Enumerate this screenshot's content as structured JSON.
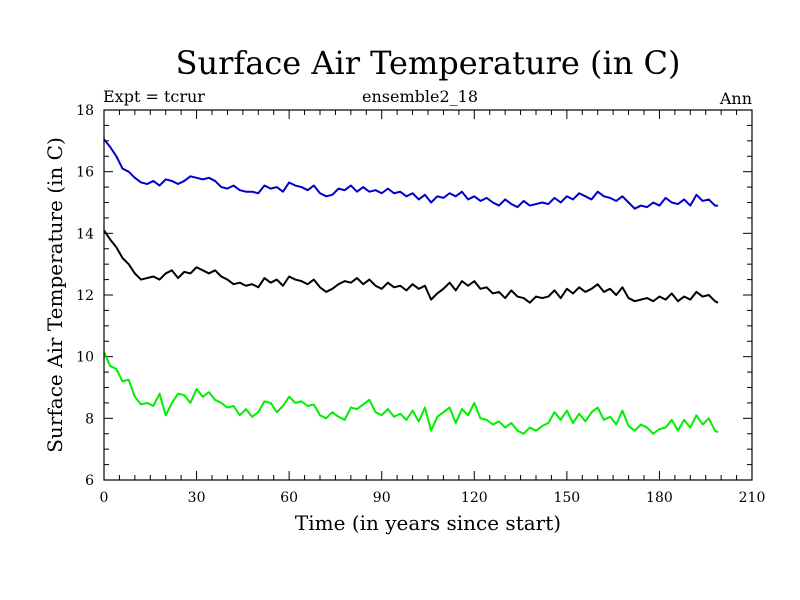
{
  "chart_data": {
    "type": "line",
    "title": "Surface Air Temperature (in C)",
    "subtitle_left": "Expt = tcrur",
    "subtitle_center": "ensemble2_18",
    "subtitle_right": "Ann",
    "xlabel": "Time (in years since start)",
    "ylabel": "Surface Air Temperature (in C)",
    "xlim": [
      0,
      210
    ],
    "ylim": [
      6,
      18
    ],
    "xticks": [
      0,
      30,
      60,
      90,
      120,
      150,
      180,
      210
    ],
    "yticks": [
      6,
      8,
      10,
      12,
      14,
      16,
      18
    ],
    "grid": false,
    "series": [
      {
        "color": "#0000cc",
        "x": [
          0,
          2,
          4,
          6,
          8,
          10,
          12,
          14,
          16,
          18,
          20,
          22,
          24,
          26,
          28,
          30,
          32,
          34,
          36,
          38,
          40,
          42,
          44,
          46,
          48,
          50,
          52,
          54,
          56,
          58,
          60,
          62,
          64,
          66,
          68,
          70,
          72,
          74,
          76,
          78,
          80,
          82,
          84,
          86,
          88,
          90,
          92,
          94,
          96,
          98,
          100,
          102,
          104,
          106,
          108,
          110,
          112,
          114,
          116,
          118,
          120,
          122,
          124,
          126,
          128,
          130,
          132,
          134,
          136,
          138,
          140,
          142,
          144,
          146,
          148,
          150,
          152,
          154,
          156,
          158,
          160,
          162,
          164,
          166,
          168,
          170,
          172,
          174,
          176,
          178,
          180,
          182,
          184,
          186,
          188,
          190,
          192,
          194,
          196,
          198,
          199
        ],
        "y": [
          17.05,
          16.8,
          16.5,
          16.1,
          16.0,
          15.8,
          15.65,
          15.6,
          15.7,
          15.55,
          15.75,
          15.7,
          15.6,
          15.7,
          15.85,
          15.8,
          15.75,
          15.8,
          15.7,
          15.5,
          15.45,
          15.55,
          15.4,
          15.35,
          15.35,
          15.3,
          15.55,
          15.45,
          15.5,
          15.35,
          15.65,
          15.55,
          15.5,
          15.4,
          15.55,
          15.3,
          15.2,
          15.25,
          15.45,
          15.4,
          15.55,
          15.35,
          15.5,
          15.35,
          15.4,
          15.3,
          15.45,
          15.3,
          15.35,
          15.2,
          15.3,
          15.1,
          15.25,
          15.0,
          15.2,
          15.15,
          15.3,
          15.2,
          15.35,
          15.1,
          15.2,
          15.05,
          15.15,
          15.0,
          14.9,
          15.1,
          14.95,
          14.85,
          15.05,
          14.9,
          14.95,
          15.0,
          14.95,
          15.15,
          15.0,
          15.2,
          15.1,
          15.3,
          15.2,
          15.1,
          15.35,
          15.2,
          15.15,
          15.05,
          15.2,
          15.0,
          14.8,
          14.9,
          14.85,
          15.0,
          14.9,
          15.15,
          15.0,
          14.95,
          15.1,
          14.9,
          15.25,
          15.05,
          15.1,
          14.9,
          14.9
        ]
      },
      {
        "color": "#000000",
        "x": [
          0,
          2,
          4,
          6,
          8,
          10,
          12,
          14,
          16,
          18,
          20,
          22,
          24,
          26,
          28,
          30,
          32,
          34,
          36,
          38,
          40,
          42,
          44,
          46,
          48,
          50,
          52,
          54,
          56,
          58,
          60,
          62,
          64,
          66,
          68,
          70,
          72,
          74,
          76,
          78,
          80,
          82,
          84,
          86,
          88,
          90,
          92,
          94,
          96,
          98,
          100,
          102,
          104,
          106,
          108,
          110,
          112,
          114,
          116,
          118,
          120,
          122,
          124,
          126,
          128,
          130,
          132,
          134,
          136,
          138,
          140,
          142,
          144,
          146,
          148,
          150,
          152,
          154,
          156,
          158,
          160,
          162,
          164,
          166,
          168,
          170,
          172,
          174,
          176,
          178,
          180,
          182,
          184,
          186,
          188,
          190,
          192,
          194,
          196,
          198,
          199
        ],
        "y": [
          14.1,
          13.8,
          13.55,
          13.2,
          13.0,
          12.7,
          12.5,
          12.55,
          12.6,
          12.5,
          12.7,
          12.8,
          12.55,
          12.75,
          12.7,
          12.9,
          12.8,
          12.7,
          12.8,
          12.6,
          12.5,
          12.35,
          12.4,
          12.3,
          12.35,
          12.25,
          12.55,
          12.4,
          12.5,
          12.3,
          12.6,
          12.5,
          12.45,
          12.35,
          12.5,
          12.25,
          12.1,
          12.2,
          12.35,
          12.45,
          12.4,
          12.55,
          12.35,
          12.5,
          12.3,
          12.2,
          12.4,
          12.25,
          12.3,
          12.15,
          12.35,
          12.2,
          12.3,
          11.85,
          12.05,
          12.2,
          12.4,
          12.15,
          12.45,
          12.3,
          12.45,
          12.2,
          12.25,
          12.05,
          12.1,
          11.9,
          12.15,
          11.95,
          11.9,
          11.75,
          11.95,
          11.9,
          11.95,
          12.15,
          11.9,
          12.2,
          12.05,
          12.25,
          12.1,
          12.2,
          12.35,
          12.1,
          12.2,
          12.0,
          12.25,
          11.9,
          11.8,
          11.85,
          11.9,
          11.8,
          11.95,
          11.85,
          12.05,
          11.8,
          11.95,
          11.85,
          12.1,
          11.95,
          12.0,
          11.8,
          11.75
        ]
      },
      {
        "color": "#00ee00",
        "x": [
          0,
          2,
          4,
          6,
          8,
          10,
          12,
          14,
          16,
          18,
          20,
          22,
          24,
          26,
          28,
          30,
          32,
          34,
          36,
          38,
          40,
          42,
          44,
          46,
          48,
          50,
          52,
          54,
          56,
          58,
          60,
          62,
          64,
          66,
          68,
          70,
          72,
          74,
          76,
          78,
          80,
          82,
          84,
          86,
          88,
          90,
          92,
          94,
          96,
          98,
          100,
          102,
          104,
          106,
          108,
          110,
          112,
          114,
          116,
          118,
          120,
          122,
          124,
          126,
          128,
          130,
          132,
          134,
          136,
          138,
          140,
          142,
          144,
          146,
          148,
          150,
          152,
          154,
          156,
          158,
          160,
          162,
          164,
          166,
          168,
          170,
          172,
          174,
          176,
          178,
          180,
          182,
          184,
          186,
          188,
          190,
          192,
          194,
          196,
          198,
          199
        ],
        "y": [
          10.15,
          9.7,
          9.6,
          9.2,
          9.25,
          8.7,
          8.45,
          8.5,
          8.4,
          8.8,
          8.1,
          8.5,
          8.8,
          8.75,
          8.5,
          8.95,
          8.7,
          8.85,
          8.6,
          8.5,
          8.35,
          8.4,
          8.1,
          8.3,
          8.05,
          8.2,
          8.55,
          8.5,
          8.2,
          8.4,
          8.7,
          8.5,
          8.55,
          8.4,
          8.45,
          8.1,
          8.0,
          8.2,
          8.05,
          7.95,
          8.35,
          8.3,
          8.45,
          8.6,
          8.2,
          8.1,
          8.3,
          8.05,
          8.15,
          7.95,
          8.25,
          7.9,
          8.35,
          7.6,
          8.05,
          8.2,
          8.35,
          7.85,
          8.3,
          8.1,
          8.5,
          8.0,
          7.95,
          7.8,
          7.9,
          7.7,
          7.85,
          7.6,
          7.5,
          7.7,
          7.6,
          7.75,
          7.85,
          8.2,
          7.95,
          8.25,
          7.85,
          8.15,
          7.9,
          8.2,
          8.35,
          7.95,
          8.05,
          7.8,
          8.25,
          7.75,
          7.6,
          7.8,
          7.7,
          7.5,
          7.65,
          7.7,
          7.95,
          7.6,
          7.95,
          7.7,
          8.1,
          7.8,
          8.0,
          7.6,
          7.55
        ]
      }
    ]
  }
}
